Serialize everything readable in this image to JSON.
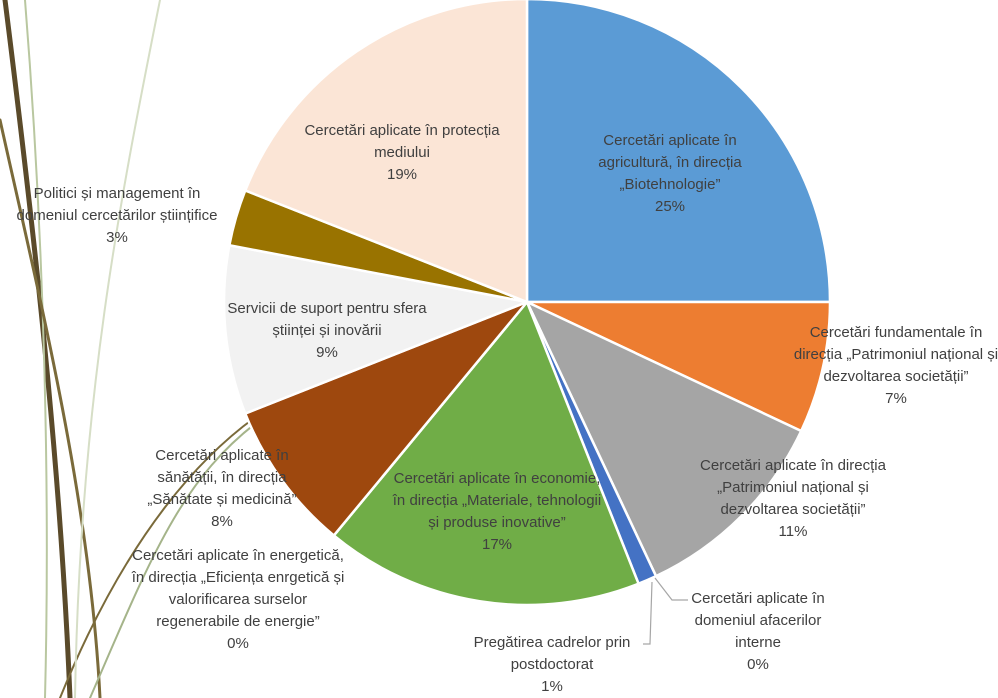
{
  "chart_data": {
    "type": "pie",
    "categories": [
      "Cercetări aplicate în agricultură, în direcția „Biotehnologie”",
      "Cercetări fundamentale în direcția „Patrimoniul național și dezvoltarea societății”",
      "Cercetări aplicate în direcția „Patrimoniul național și dezvoltarea societății”",
      "Cercetări aplicate în domeniul afacerilor interne",
      "Pregătirea cadrelor prin postdoctorat",
      "Cercetări aplicate în economie, în direcția „Materiale, tehnologii și produse inovative”",
      "Cercetări aplicate în energetică, în direcția „Eficiența enrgetică și valorificarea surselor regenerabile de energie”",
      "Cercetări aplicate în sănătății, în direcția „Sănătate și medicină”",
      "Servicii de suport pentru sfera științei și inovării",
      "Politici și management în domeniul cercetărilor științifice",
      "Cercetări aplicate în protecția mediului"
    ],
    "values": [
      25,
      7,
      11,
      0,
      1,
      17,
      0,
      8,
      9,
      3,
      19
    ],
    "value_labels": [
      "25%",
      "7%",
      "11%",
      "0%",
      "1%",
      "17%",
      "0%",
      "8%",
      "9%",
      "3%",
      "19%"
    ],
    "colors": [
      "#5b9bd5",
      "#ed7d31",
      "#a5a5a5",
      "#ffc000",
      "#4472c4",
      "#70ad47",
      "#264478",
      "#9e480e",
      "#f2f2f2",
      "#997300",
      "#fbe5d6"
    ]
  }
}
